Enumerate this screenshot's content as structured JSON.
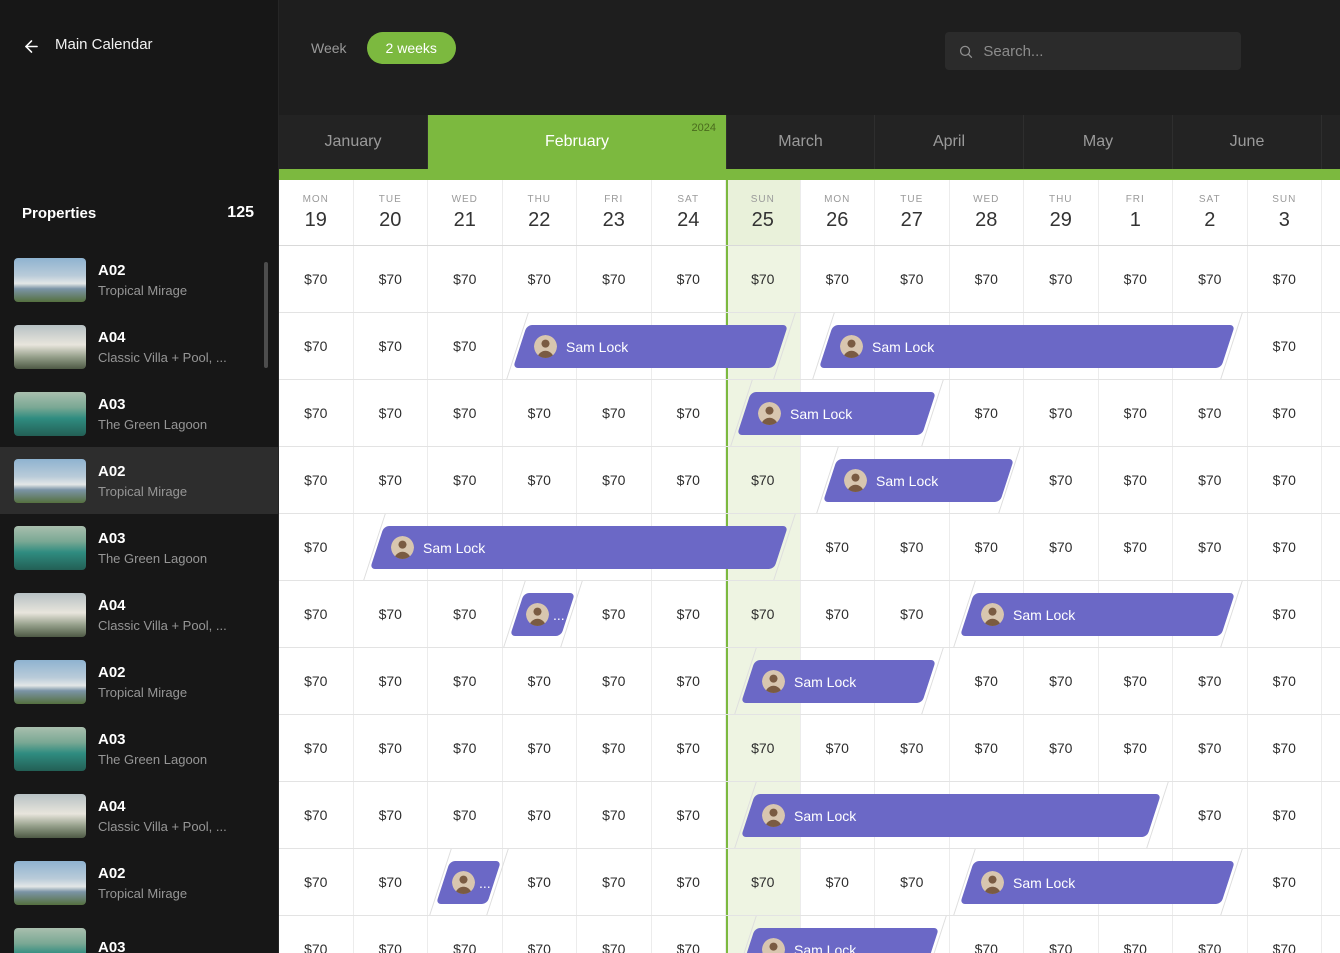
{
  "topbar": {
    "back_label": "Main Calendar",
    "week_label": "Week",
    "two_weeks_label": "2 weeks",
    "search_placeholder": "Search..."
  },
  "sidebar": {
    "title": "Properties",
    "count": "125",
    "properties": [
      {
        "code": "A02",
        "subtitle": "Tropical Mirage",
        "thumb": "a02",
        "selected": false
      },
      {
        "code": "A04",
        "subtitle": "Classic Villa + Pool, ...",
        "thumb": "a04",
        "selected": false
      },
      {
        "code": "A03",
        "subtitle": "The Green Lagoon",
        "thumb": "a03",
        "selected": false
      },
      {
        "code": "A02",
        "subtitle": "Tropical Mirage",
        "thumb": "a02",
        "selected": true
      },
      {
        "code": "A03",
        "subtitle": "The Green Lagoon",
        "thumb": "a03",
        "selected": false
      },
      {
        "code": "A04",
        "subtitle": "Classic Villa + Pool, ...",
        "thumb": "a04",
        "selected": false
      },
      {
        "code": "A02",
        "subtitle": "Tropical Mirage",
        "thumb": "a02",
        "selected": false
      },
      {
        "code": "A03",
        "subtitle": "The Green Lagoon",
        "thumb": "a03",
        "selected": false
      },
      {
        "code": "A04",
        "subtitle": "Classic Villa + Pool, ...",
        "thumb": "a04",
        "selected": false
      },
      {
        "code": "A02",
        "subtitle": "Tropical Mirage",
        "thumb": "a02",
        "selected": false
      },
      {
        "code": "A03",
        "subtitle": "",
        "thumb": "a03",
        "selected": false
      }
    ]
  },
  "calendar": {
    "year_label": "2024",
    "months": [
      {
        "label": "January",
        "active": false
      },
      {
        "label": "February",
        "active": true
      },
      {
        "label": "March",
        "active": false
      },
      {
        "label": "April",
        "active": false
      },
      {
        "label": "May",
        "active": false
      },
      {
        "label": "June",
        "active": false
      }
    ],
    "days": [
      {
        "dow": "MON",
        "num": "19"
      },
      {
        "dow": "TUE",
        "num": "20"
      },
      {
        "dow": "WED",
        "num": "21"
      },
      {
        "dow": "THU",
        "num": "22"
      },
      {
        "dow": "FRI",
        "num": "23"
      },
      {
        "dow": "SAT",
        "num": "24"
      },
      {
        "dow": "SUN",
        "num": "25"
      },
      {
        "dow": "MON",
        "num": "26"
      },
      {
        "dow": "TUE",
        "num": "27"
      },
      {
        "dow": "WED",
        "num": "28"
      },
      {
        "dow": "THU",
        "num": "29"
      },
      {
        "dow": "FRI",
        "num": "1"
      },
      {
        "dow": "SAT",
        "num": "2"
      },
      {
        "dow": "SUN",
        "num": "3"
      }
    ],
    "highlight_day": 6,
    "price_label": "$70",
    "rows": [
      {
        "cells": [
          1,
          1,
          1,
          1,
          1,
          1,
          1,
          1,
          1,
          1,
          1,
          1,
          1,
          1
        ],
        "bookings": []
      },
      {
        "cells": [
          1,
          1,
          1,
          0,
          0,
          0,
          0,
          0,
          0,
          0,
          0,
          0,
          0,
          1
        ],
        "bookings": [
          {
            "start": 3.2,
            "end": 6.78,
            "label": "Sam Lock"
          },
          {
            "start": 7.3,
            "end": 12.78,
            "label": "Sam Lock"
          }
        ]
      },
      {
        "cells": [
          1,
          1,
          1,
          1,
          1,
          1,
          0,
          0,
          0,
          1,
          1,
          1,
          1,
          1
        ],
        "bookings": [
          {
            "start": 6.2,
            "end": 8.76,
            "label": "Sam Lock"
          }
        ]
      },
      {
        "cells": [
          1,
          1,
          1,
          1,
          1,
          1,
          1,
          0,
          0,
          0,
          1,
          1,
          1,
          1
        ],
        "bookings": [
          {
            "start": 7.35,
            "end": 9.8,
            "label": "Sam Lock"
          }
        ]
      },
      {
        "cells": [
          1,
          0,
          0,
          0,
          0,
          0,
          0,
          1,
          1,
          1,
          1,
          1,
          1,
          1
        ],
        "bookings": [
          {
            "start": 1.28,
            "end": 6.78,
            "label": "Sam Lock"
          }
        ]
      },
      {
        "cells": [
          1,
          1,
          1,
          0,
          1,
          1,
          1,
          1,
          1,
          0,
          0,
          0,
          0,
          1
        ],
        "bookings": [
          {
            "start": 3.16,
            "end": 3.92,
            "label": "..."
          },
          {
            "start": 9.2,
            "end": 12.78,
            "label": "Sam Lock"
          }
        ]
      },
      {
        "cells": [
          1,
          1,
          1,
          1,
          1,
          1,
          0,
          0,
          0,
          1,
          1,
          1,
          1,
          1
        ],
        "bookings": [
          {
            "start": 6.25,
            "end": 8.76,
            "label": "Sam Lock"
          }
        ]
      },
      {
        "cells": [
          1,
          1,
          1,
          1,
          1,
          1,
          1,
          1,
          1,
          1,
          1,
          1,
          1,
          1
        ],
        "bookings": []
      },
      {
        "cells": [
          1,
          1,
          1,
          1,
          1,
          1,
          0,
          0,
          0,
          0,
          0,
          0,
          1,
          1
        ],
        "bookings": [
          {
            "start": 6.25,
            "end": 11.78,
            "label": "Sam Lock"
          }
        ]
      },
      {
        "cells": [
          1,
          1,
          0,
          1,
          1,
          1,
          1,
          1,
          1,
          0,
          0,
          0,
          0,
          1
        ],
        "bookings": [
          {
            "start": 2.16,
            "end": 2.92,
            "label": "..."
          },
          {
            "start": 9.2,
            "end": 12.78,
            "label": "Sam Lock"
          }
        ]
      },
      {
        "cells": [
          1,
          1,
          1,
          1,
          1,
          1,
          0,
          0,
          0,
          1,
          1,
          1,
          1,
          1
        ],
        "bookings": [
          {
            "start": 6.25,
            "end": 8.8,
            "label": "Sam Lock"
          }
        ]
      }
    ]
  },
  "colors": {
    "accent_green": "#7cb93f",
    "booking_purple": "#6b68c6",
    "highlight_column": "#eef4e2",
    "highlight_header": "#e9f1da"
  }
}
